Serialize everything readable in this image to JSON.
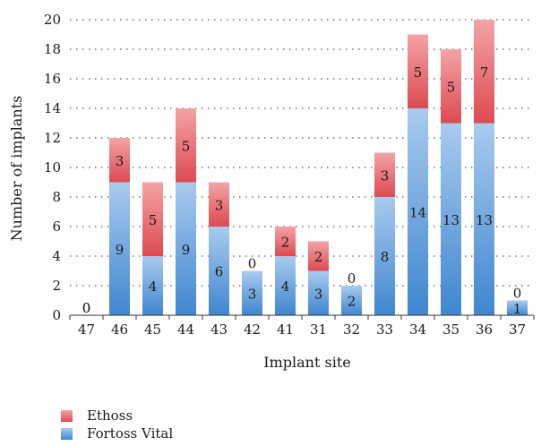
{
  "chart_data": {
    "type": "bar",
    "stacked": true,
    "xlabel": "Implant site",
    "ylabel": "Number of implants",
    "ylim": [
      0,
      20
    ],
    "yticks": [
      0,
      2,
      4,
      6,
      8,
      10,
      12,
      14,
      16,
      18,
      20
    ],
    "grid": "dotted horizontal",
    "legend_position": "bottom-left",
    "categories": [
      "47",
      "46",
      "45",
      "44",
      "43",
      "42",
      "41",
      "31",
      "32",
      "33",
      "34",
      "35",
      "36",
      "37"
    ],
    "series": [
      {
        "name": "Fortoss Vital",
        "color": "#4a8fd4",
        "values": [
          0,
          9,
          4,
          9,
          6,
          3,
          4,
          3,
          2,
          8,
          14,
          13,
          13,
          1
        ]
      },
      {
        "name": "Ethoss",
        "color": "#e0555c",
        "values": [
          0,
          3,
          5,
          5,
          3,
          0,
          2,
          2,
          0,
          3,
          5,
          5,
          7,
          0
        ]
      }
    ]
  },
  "legend": {
    "items": [
      {
        "label": "Ethoss",
        "color": "#e0555c"
      },
      {
        "label": "Fortoss Vital",
        "color": "#4a8fd4"
      }
    ]
  }
}
